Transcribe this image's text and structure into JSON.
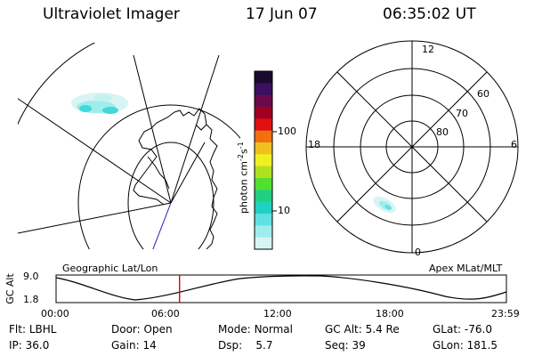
{
  "header": {
    "title": "Ultraviolet Imager",
    "date": "17 Jun 07",
    "time": "06:35:02 UT"
  },
  "colorbar": {
    "unit": "photon cm-2s-1",
    "unit_text_main": "photon cm",
    "unit_sup1": "-2",
    "unit_mid": "s",
    "unit_sup2": "-1",
    "ticks": [
      "100",
      "10"
    ],
    "colors": [
      "#1a0a2e",
      "#3a1060",
      "#6a0a4a",
      "#a00020",
      "#e01010",
      "#f07010",
      "#f0c020",
      "#f0f020",
      "#b0e020",
      "#50e030",
      "#20d080",
      "#20d0c0",
      "#60e0e0",
      "#a0ecec",
      "#d8f4f4"
    ]
  },
  "left_map": {
    "caption": "Geographic Lat/Lon"
  },
  "right_map": {
    "caption": "Apex MLat/MLT",
    "lat_labels": [
      "60",
      "70",
      "80"
    ],
    "mlt_labels": [
      "12",
      "18",
      "6",
      "0"
    ]
  },
  "timeline": {
    "ylabel": "GC Alt",
    "ymax": "9.0",
    "ymin": "1.8",
    "xticks": [
      "00:00",
      "06:00",
      "12:00",
      "18:00",
      "23:59"
    ],
    "current_time_hours": 6.58
  },
  "status": {
    "row1": [
      {
        "label": "Flt:",
        "value": "LBHL"
      },
      {
        "label": "Door:",
        "value": "Open"
      },
      {
        "label": "Mode:",
        "value": "Normal"
      },
      {
        "label": "GC Alt:",
        "value": "5.4 Re"
      },
      {
        "label": "GLat:",
        "value": "-76.0"
      }
    ],
    "row2": [
      {
        "label": "IP:",
        "value": "36.0"
      },
      {
        "label": "Gain:",
        "value": "14"
      },
      {
        "label": "Dsp:",
        "value": "5.7"
      },
      {
        "label": "Seq:",
        "value": "39"
      },
      {
        "label": "GLon:",
        "value": "181.5"
      }
    ]
  },
  "style": {
    "accent_red": "#e00000",
    "trajectory_blue": "#2020c0",
    "aurora_cyan": "#40d8d8"
  }
}
